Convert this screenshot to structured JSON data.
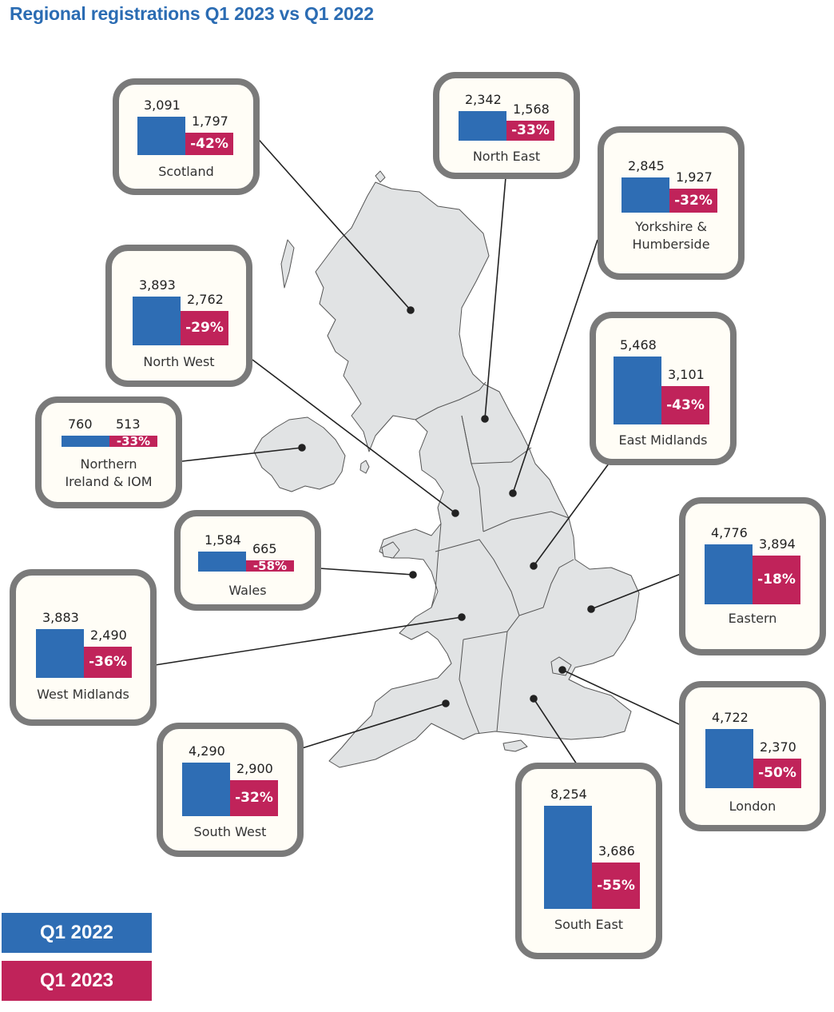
{
  "title": "Regional registrations Q1 2023 vs Q1 2022",
  "colors": {
    "q1_2022": "#2e6db4",
    "q1_2023": "#c0235a",
    "border": "#7a7a7a",
    "map_fill": "#e1e3e4"
  },
  "legend": {
    "q1_2022": "Q1 2022",
    "q1_2023": "Q1 2023"
  },
  "chart_data": {
    "type": "bar",
    "title": "Regional registrations Q1 2023 vs Q1 2022",
    "series_names": [
      "Q1 2022",
      "Q1 2023"
    ],
    "regions": [
      {
        "name": "Scotland",
        "q1_2022": 3091,
        "q1_2023": 1797,
        "q1_2022_label": "3,091",
        "q1_2023_label": "1,797",
        "change": "-42%"
      },
      {
        "name": "North East",
        "q1_2022": 2342,
        "q1_2023": 1568,
        "q1_2022_label": "2,342",
        "q1_2023_label": "1,568",
        "change": "-33%"
      },
      {
        "name": "Yorkshire &\nHumberside",
        "q1_2022": 2845,
        "q1_2023": 1927,
        "q1_2022_label": "2,845",
        "q1_2023_label": "1,927",
        "change": "-32%"
      },
      {
        "name": "North West",
        "q1_2022": 3893,
        "q1_2023": 2762,
        "q1_2022_label": "3,893",
        "q1_2023_label": "2,762",
        "change": "-29%"
      },
      {
        "name": "East Midlands",
        "q1_2022": 5468,
        "q1_2023": 3101,
        "q1_2022_label": "5,468",
        "q1_2023_label": "3,101",
        "change": "-43%"
      },
      {
        "name": "Northern\nIreland & IOM",
        "q1_2022": 760,
        "q1_2023": 513,
        "q1_2022_label": "760",
        "q1_2023_label": "513",
        "change": "-33%"
      },
      {
        "name": "Wales",
        "q1_2022": 1584,
        "q1_2023": 665,
        "q1_2022_label": "1,584",
        "q1_2023_label": "665",
        "change": "-58%"
      },
      {
        "name": "Eastern",
        "q1_2022": 4776,
        "q1_2023": 3894,
        "q1_2022_label": "4,776",
        "q1_2023_label": "3,894",
        "change": "-18%"
      },
      {
        "name": "West Midlands",
        "q1_2022": 3883,
        "q1_2023": 2490,
        "q1_2022_label": "3,883",
        "q1_2023_label": "2,490",
        "change": "-36%"
      },
      {
        "name": "London",
        "q1_2022": 4722,
        "q1_2023": 2370,
        "q1_2022_label": "4,722",
        "q1_2023_label": "2,370",
        "change": "-50%"
      },
      {
        "name": "South West",
        "q1_2022": 4290,
        "q1_2023": 2900,
        "q1_2022_label": "4,290",
        "q1_2023_label": "2,900",
        "change": "-32%"
      },
      {
        "name": "South East",
        "q1_2022": 8254,
        "q1_2023": 3686,
        "q1_2022_label": "8,254",
        "q1_2023_label": "3,686",
        "change": "-55%"
      }
    ]
  }
}
